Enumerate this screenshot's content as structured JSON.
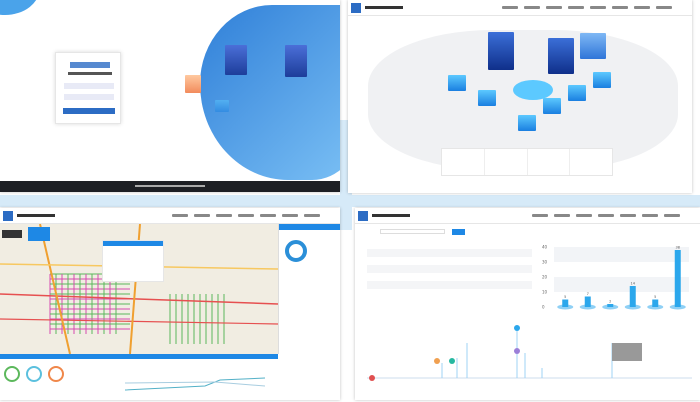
{
  "layout": "four-screenshot collage",
  "colors": {
    "accent": "#1e88e5",
    "bar": "#2ba7ec",
    "footer": "#1d1f24",
    "map_bg": "#f1ede2"
  },
  "login": {
    "brand_logo_text": "",
    "fields": 2,
    "submit": ""
  },
  "bar_chart": {
    "type": "bar",
    "yticks": [
      "0",
      "10",
      "20",
      "30",
      "40"
    ],
    "values": [
      5,
      7,
      2,
      14,
      5,
      38
    ],
    "ylim": [
      0,
      40
    ]
  },
  "gauges": {
    "colors": [
      "#5cb85c",
      "#5bc0de",
      "#f0874a"
    ]
  }
}
